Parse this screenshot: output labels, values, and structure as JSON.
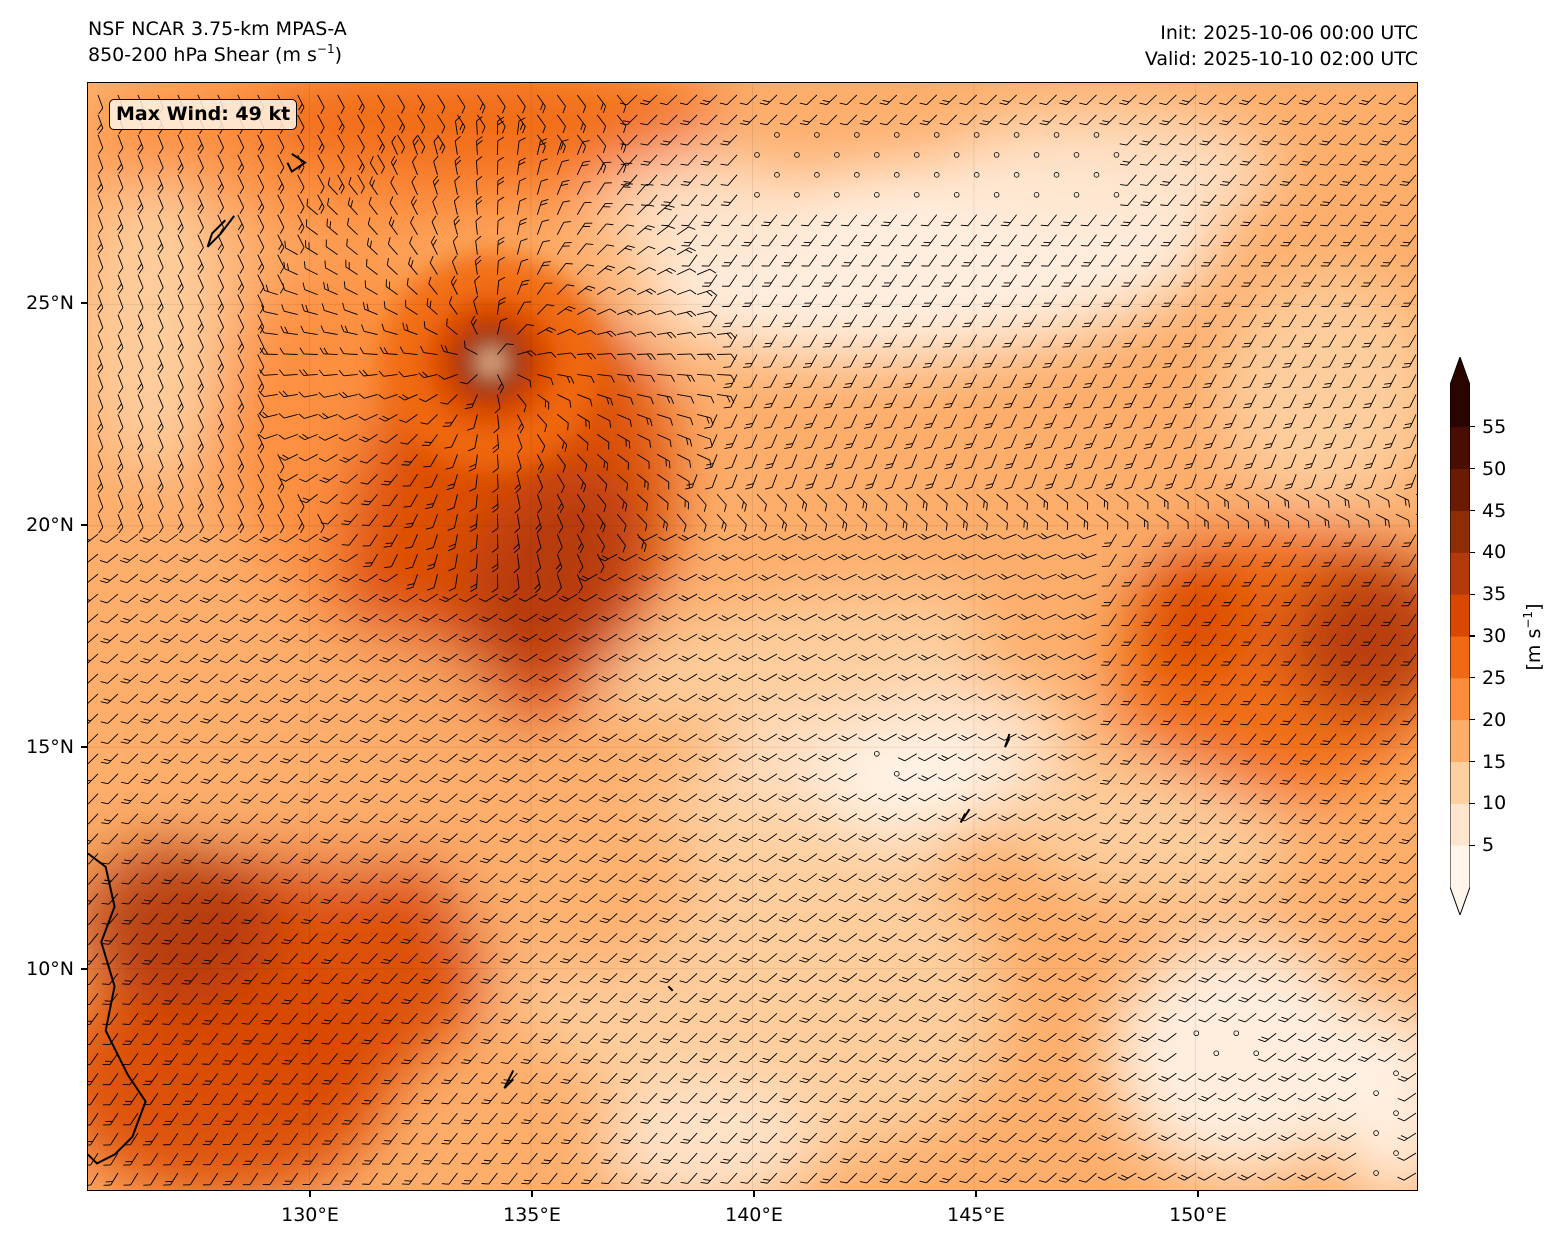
{
  "header": {
    "model": "NSF NCAR 3.75-km MPAS-A",
    "field_text": "850-200 hPa Shear (m s",
    "field_exp": "−1",
    "field_close": ")",
    "init": "Init: 2025-10-06 00:00 UTC",
    "valid": "Valid: 2025-10-10 02:00 UTC"
  },
  "annotation": {
    "max_wind": "Max Wind: 49 kt"
  },
  "axes": {
    "lat_labels": [
      "25°N",
      "20°N",
      "15°N",
      "10°N"
    ],
    "lon_labels": [
      "130°E",
      "135°E",
      "140°E",
      "145°E",
      "150°E"
    ],
    "lon_range": [
      125,
      155
    ],
    "lat_range": [
      5,
      30
    ]
  },
  "colorbar": {
    "labels": [
      "5",
      "10",
      "15",
      "20",
      "25",
      "30",
      "35",
      "40",
      "45",
      "50",
      "55"
    ],
    "unit_text": "[m s",
    "unit_exp": "−1",
    "unit_close": "]",
    "range": [
      0,
      60
    ],
    "extend": "both",
    "colors": [
      "#fff5eb",
      "#fee6ce",
      "#fdd0a2",
      "#fdae6b",
      "#fd8d3c",
      "#f16913",
      "#d94801",
      "#b33a0a",
      "#8c2d04",
      "#6b1a03",
      "#4a0d02",
      "#2a0500"
    ]
  },
  "map": {
    "storm_center": {
      "lon": 134.1,
      "lat": 23.7
    },
    "calm_circle_regions": [
      "north-central",
      "south-central",
      "southeast"
    ]
  }
}
